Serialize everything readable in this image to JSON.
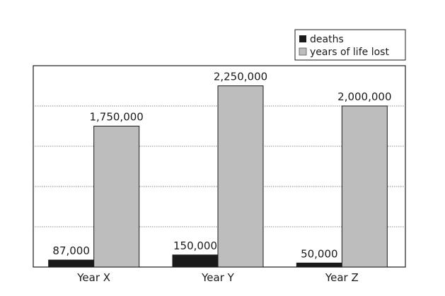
{
  "chart_data": {
    "type": "bar",
    "categories": [
      "Year X",
      "Year Y",
      "Year Z"
    ],
    "series": [
      {
        "name": "deaths",
        "values": [
          87000,
          150000,
          50000
        ],
        "labels": [
          "87,000",
          "150,000",
          "50,000"
        ],
        "color": "#1a1a1a"
      },
      {
        "name": "years of life lost",
        "values": [
          1750000,
          2250000,
          2000000
        ],
        "labels": [
          "1,750,000",
          "2,250,000",
          "2,000,000"
        ],
        "color": "#bdbdbd"
      }
    ],
    "ylim": [
      0,
      2500000
    ],
    "gridlines": [
      500000,
      1000000,
      1500000,
      2000000
    ],
    "grid": true,
    "y_tick_labels_shown": false,
    "legend_position": "top-right",
    "title": "",
    "xlabel": "",
    "ylabel": ""
  }
}
